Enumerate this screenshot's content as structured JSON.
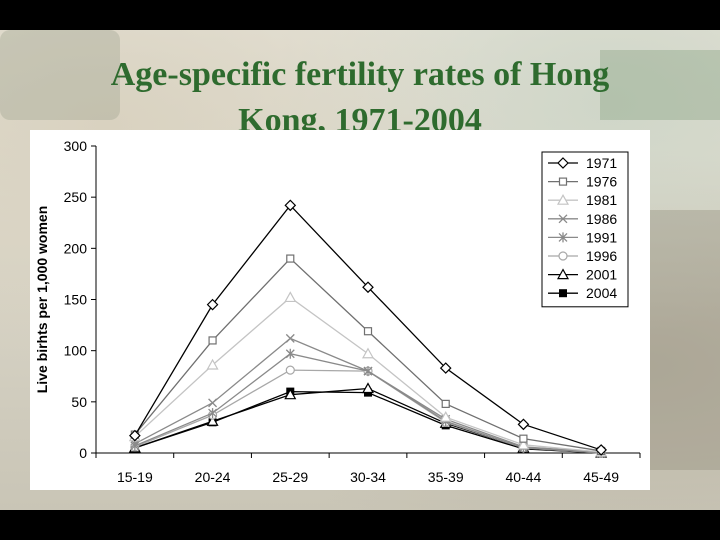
{
  "slide": {
    "title_line1": "Age-specific fertility rates of  Hong",
    "title_line2": "Kong, 1971-2004"
  },
  "chart_data": {
    "type": "line",
    "title": "Age-specific fertility rates of Hong Kong, 1971-2004",
    "xlabel": "",
    "ylabel": "Live birhts per 1,000 women",
    "ylim": [
      0,
      300
    ],
    "yticks": [
      0,
      50,
      100,
      150,
      200,
      250,
      300
    ],
    "grid": false,
    "legend": "top-right",
    "categories": [
      "15-19",
      "20-24",
      "25-29",
      "30-34",
      "35-39",
      "40-44",
      "45-49"
    ],
    "series": [
      {
        "name": "1971",
        "marker": "diamond-open",
        "color": "#000000",
        "values": [
          17,
          145,
          242,
          162,
          83,
          28,
          3
        ]
      },
      {
        "name": "1976",
        "marker": "square-open",
        "color": "#707070",
        "values": [
          18,
          110,
          190,
          119,
          48,
          14,
          2
        ]
      },
      {
        "name": "1981",
        "marker": "triangle-open",
        "color": "#c4c4c4",
        "values": [
          16,
          86,
          152,
          97,
          35,
          8,
          1
        ]
      },
      {
        "name": "1986",
        "marker": "x",
        "color": "#8a8a8a",
        "values": [
          9,
          49,
          112,
          80,
          33,
          6,
          1
        ]
      },
      {
        "name": "1991",
        "marker": "star",
        "color": "#8a8a8a",
        "values": [
          7,
          39,
          97,
          80,
          31,
          5,
          0
        ]
      },
      {
        "name": "1996",
        "marker": "circle-open",
        "color": "#a8a8a8",
        "values": [
          6,
          37,
          81,
          80,
          30,
          5,
          0
        ]
      },
      {
        "name": "2001",
        "marker": "triangle-open",
        "color": "#000000",
        "values": [
          5,
          31,
          57,
          63,
          29,
          5,
          0
        ]
      },
      {
        "name": "2004",
        "marker": "square-filled",
        "color": "#000000",
        "values": [
          5,
          30,
          60,
          59,
          27,
          4,
          0
        ]
      }
    ]
  }
}
